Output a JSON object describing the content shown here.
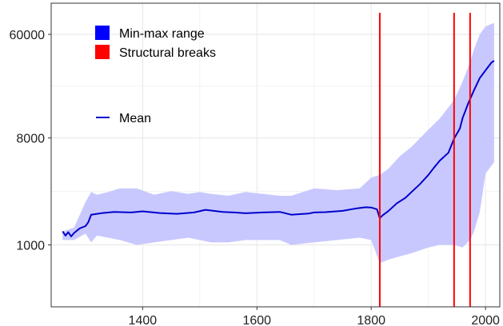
{
  "chart_data": {
    "type": "line",
    "title": "",
    "xlabel": "",
    "ylabel": "",
    "xlim": [
      1240,
      2025
    ],
    "ylim": [
      300,
      110000
    ],
    "y_scale": "log",
    "grid": true,
    "x_ticks": [
      {
        "value": 1400,
        "label": "1400"
      },
      {
        "value": 1600,
        "label": "1600"
      },
      {
        "value": 1800,
        "label": "1800"
      },
      {
        "value": 2000,
        "label": "2000"
      }
    ],
    "y_ticks": [
      {
        "value": 1000,
        "label": "1000"
      },
      {
        "value": 8000,
        "label": "8000"
      },
      {
        "value": 60000,
        "label": "60000"
      }
    ],
    "legend": {
      "placement": "top-left",
      "items": [
        {
          "label": "Min-max range",
          "color": "#0000ff",
          "kind": "box"
        },
        {
          "label": "Structural breaks",
          "color": "#ff0000",
          "kind": "box"
        },
        {
          "label": "Mean",
          "color": "#0000cc",
          "kind": "line"
        }
      ]
    },
    "band_color": "#c8c8ff",
    "mean_color": "#0000cc",
    "break_color": "#ff0000",
    "structural_breaks": [
      1815,
      1945,
      1973
    ],
    "mean": {
      "x": [
        1260,
        1265,
        1270,
        1275,
        1280,
        1290,
        1300,
        1305,
        1310,
        1330,
        1350,
        1380,
        1400,
        1430,
        1460,
        1490,
        1510,
        1540,
        1560,
        1580,
        1610,
        1640,
        1660,
        1690,
        1700,
        1720,
        1750,
        1770,
        1790,
        1800,
        1810,
        1815,
        1820,
        1830,
        1845,
        1860,
        1870,
        1885,
        1900,
        1910,
        1920,
        1935,
        1945,
        1955,
        1960,
        1970,
        1980,
        1990,
        2000,
        2010,
        2015
      ],
      "y": [
        1300,
        1200,
        1280,
        1180,
        1260,
        1380,
        1440,
        1560,
        1800,
        1860,
        1900,
        1880,
        1920,
        1860,
        1830,
        1880,
        1980,
        1900,
        1880,
        1850,
        1880,
        1900,
        1800,
        1840,
        1880,
        1890,
        1940,
        2020,
        2080,
        2070,
        2000,
        1680,
        1780,
        1930,
        2250,
        2500,
        2780,
        3250,
        3900,
        4500,
        5150,
        6000,
        7900,
        9600,
        11800,
        15800,
        20300,
        25700,
        29800,
        34500,
        36000
      ]
    },
    "min_max_range": {
      "x": [
        1260,
        1280,
        1300,
        1310,
        1320,
        1340,
        1360,
        1390,
        1420,
        1450,
        1480,
        1500,
        1520,
        1550,
        1580,
        1610,
        1640,
        1660,
        1700,
        1740,
        1780,
        1800,
        1815,
        1830,
        1850,
        1870,
        1900,
        1920,
        1945,
        1960,
        1973,
        1980,
        1990,
        2000,
        2015
      ],
      "min": [
        1100,
        1100,
        1250,
        1050,
        1200,
        1150,
        1100,
        1000,
        1050,
        1100,
        1150,
        1100,
        1050,
        1050,
        1100,
        1100,
        1100,
        1000,
        1050,
        1100,
        1150,
        1100,
        700,
        750,
        800,
        850,
        950,
        1000,
        1000,
        950,
        1100,
        1300,
        1900,
        4000,
        5000
      ],
      "max": [
        1300,
        1400,
        2300,
        2800,
        2650,
        2800,
        3000,
        3000,
        2650,
        2850,
        2700,
        2800,
        2700,
        2600,
        2800,
        2700,
        2600,
        2600,
        3000,
        2900,
        3000,
        3700,
        3900,
        4400,
        5600,
        6700,
        9400,
        11700,
        16700,
        24000,
        35000,
        45000,
        60000,
        70000,
        75000
      ]
    }
  }
}
